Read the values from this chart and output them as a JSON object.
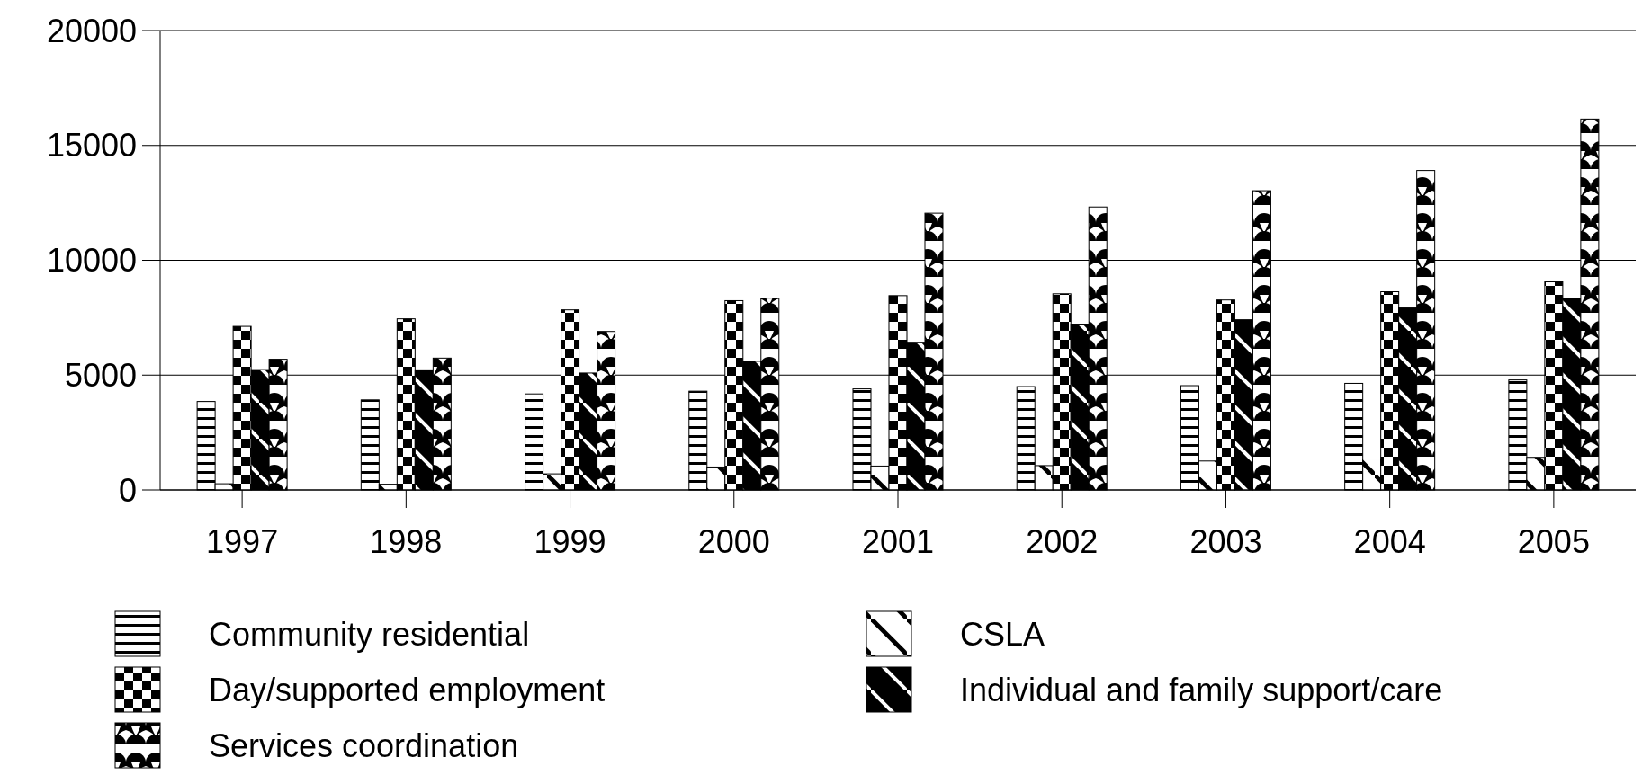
{
  "chart_data": {
    "type": "bar",
    "categories": [
      "1997",
      "1998",
      "1999",
      "2000",
      "2001",
      "2002",
      "2003",
      "2004",
      "2005"
    ],
    "series": [
      {
        "name": "Community residential",
        "color": "#000000",
        "values": [
          3850,
          3920,
          4180,
          4300,
          4400,
          4500,
          4540,
          4640,
          4790
        ]
      },
      {
        "name": "CSLA",
        "color": "#000000",
        "values": [
          270,
          250,
          700,
          1000,
          1040,
          1060,
          1260,
          1350,
          1420
        ]
      },
      {
        "name": "Day/supported employment",
        "color": "#000000",
        "values": [
          7120,
          7450,
          7840,
          8240,
          8460,
          8540,
          8270,
          8630,
          9060
        ]
      },
      {
        "name": "Individual and family support/care",
        "color": "#000000",
        "values": [
          5240,
          5230,
          5090,
          5600,
          6430,
          7220,
          7410,
          7940,
          8340
        ]
      },
      {
        "name": "Services coordination",
        "color": "#000000",
        "values": [
          5690,
          5740,
          6900,
          8350,
          12050,
          12320,
          13030,
          13910,
          16150
        ]
      }
    ],
    "ylim": [
      0,
      20000
    ],
    "yticks": [
      0,
      5000,
      10000,
      15000,
      20000
    ],
    "grid": "y",
    "legend": "bottom"
  }
}
